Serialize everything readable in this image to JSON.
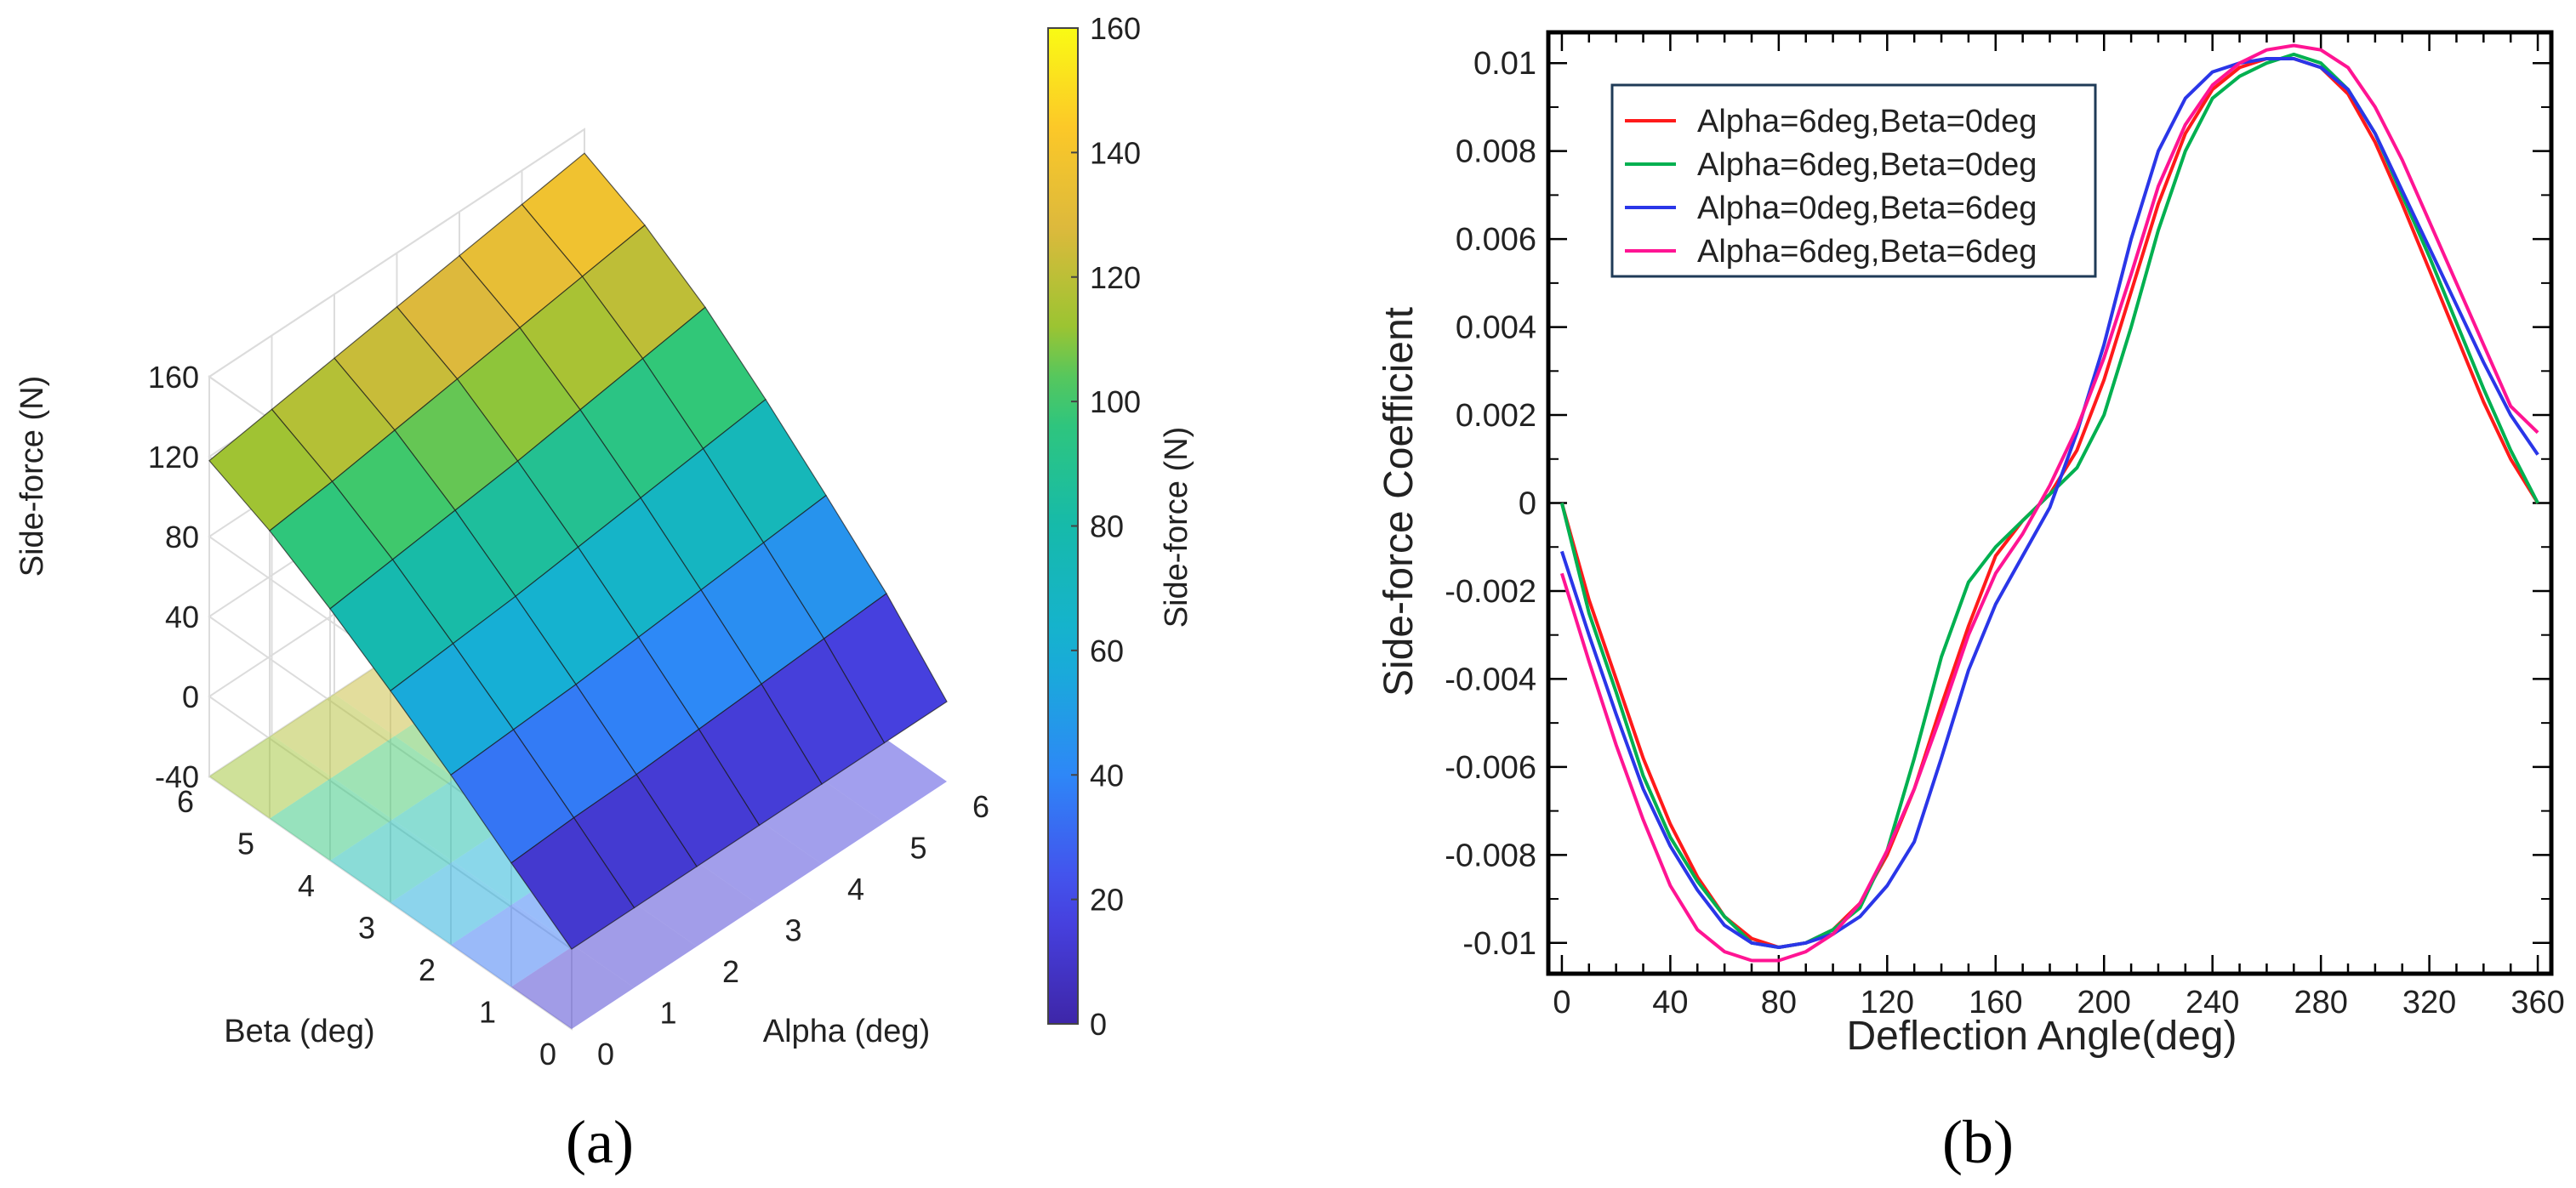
{
  "panel_labels": {
    "a": "(a)",
    "b": "(b)"
  },
  "chart_data": [
    {
      "type": "surface3d",
      "panel": "(a)",
      "zlabel": "Side-force (N)",
      "xlabel": "Alpha (deg)",
      "ylabel": "Beta (deg)",
      "x_ticks": [
        "0",
        "1",
        "2",
        "3",
        "4",
        "5",
        "6"
      ],
      "y_ticks": [
        "0",
        "1",
        "2",
        "3",
        "4",
        "5",
        "6"
      ],
      "z_ticks": [
        "-40",
        "0",
        "40",
        "80",
        "120",
        "160"
      ],
      "zlim": [
        -40,
        160
      ],
      "alpha_values": [
        0,
        1,
        2,
        3,
        4,
        5,
        6
      ],
      "beta_values": [
        0,
        1,
        2,
        3,
        4,
        5,
        6
      ],
      "surface": [
        [
          0,
          0,
          0,
          0,
          0,
          0,
          0
        ],
        [
          22,
          24,
          25,
          27,
          29,
          31,
          33
        ],
        [
          45,
          47,
          49,
          52,
          55,
          58,
          61
        ],
        [
          66,
          69,
          72,
          76,
          80,
          84,
          88
        ],
        [
          86,
          90,
          94,
          98,
          103,
          108,
          113
        ],
        [
          104,
          108,
          113,
          118,
          123,
          128,
          133
        ],
        [
          118,
          123,
          128,
          133,
          138,
          143,
          148
        ]
      ],
      "colorbar": {
        "label": "Side-force (N)",
        "ticks": [
          "0",
          "20",
          "40",
          "60",
          "80",
          "100",
          "120",
          "140",
          "160"
        ],
        "range": [
          0,
          160
        ]
      }
    },
    {
      "type": "line",
      "panel": "(b)",
      "xlabel": "Deflection Angle(deg)",
      "ylabel": "Side-force Coefficient",
      "xlim": [
        -5,
        365
      ],
      "ylim": [
        -0.0107,
        0.0107
      ],
      "x_ticks": [
        "0",
        "40",
        "80",
        "120",
        "160",
        "200",
        "240",
        "280",
        "320",
        "360"
      ],
      "y_ticks": [
        "0.01",
        "0.008",
        "0.006",
        "0.004",
        "0.002",
        "0",
        "-0.002",
        "-0.004",
        "-0.006",
        "-0.008",
        "-0.01"
      ],
      "legend_position": "top-left",
      "x": [
        0,
        10,
        20,
        30,
        40,
        50,
        60,
        70,
        80,
        90,
        100,
        110,
        120,
        130,
        140,
        150,
        160,
        170,
        180,
        190,
        200,
        210,
        220,
        230,
        240,
        250,
        260,
        270,
        280,
        290,
        300,
        310,
        320,
        330,
        340,
        350,
        360
      ],
      "series": [
        {
          "name": "Alpha=6deg,Beta=0deg",
          "color": "#ff1a1a",
          "values": [
            0,
            -0.0022,
            -0.004,
            -0.0058,
            -0.0073,
            -0.0085,
            -0.0094,
            -0.0099,
            -0.0101,
            -0.01,
            -0.0097,
            -0.0091,
            -0.008,
            -0.0065,
            -0.0046,
            -0.0028,
            -0.0012,
            -0.0004,
            0.0002,
            0.0012,
            0.0028,
            0.0048,
            0.0068,
            0.0084,
            0.0094,
            0.0099,
            0.0101,
            0.0101,
            0.0099,
            0.0093,
            0.0082,
            0.0068,
            0.0053,
            0.0038,
            0.0023,
            0.001,
            0
          ]
        },
        {
          "name": "Alpha=6deg,Beta=0deg",
          "color": "#00b050",
          "values": [
            0,
            -0.0025,
            -0.0043,
            -0.0062,
            -0.0076,
            -0.0086,
            -0.0094,
            -0.01,
            -0.0101,
            -0.01,
            -0.0097,
            -0.0092,
            -0.0079,
            -0.0058,
            -0.0035,
            -0.0018,
            -0.001,
            -0.0004,
            0.0002,
            0.0008,
            0.002,
            0.004,
            0.0062,
            0.008,
            0.0092,
            0.0097,
            0.01,
            0.0102,
            0.01,
            0.0094,
            0.0084,
            0.007,
            0.0056,
            0.0041,
            0.0026,
            0.0012,
            0
          ]
        },
        {
          "name": "Alpha=0deg,Beta=6deg",
          "color": "#2a36e8",
          "values": [
            -0.0011,
            -0.003,
            -0.0048,
            -0.0065,
            -0.0078,
            -0.0088,
            -0.0096,
            -0.01,
            -0.0101,
            -0.01,
            -0.0098,
            -0.0094,
            -0.0087,
            -0.0077,
            -0.0058,
            -0.0038,
            -0.0023,
            -0.0012,
            -0.0001,
            0.0016,
            0.0036,
            0.006,
            0.008,
            0.0092,
            0.0098,
            0.01,
            0.0101,
            0.0101,
            0.0099,
            0.0094,
            0.0084,
            0.0071,
            0.0058,
            0.0045,
            0.0032,
            0.002,
            0.0011
          ]
        },
        {
          "name": "Alpha=6deg,Beta=6deg",
          "color": "#ff1493",
          "values": [
            -0.0016,
            -0.0036,
            -0.0055,
            -0.0072,
            -0.0087,
            -0.0097,
            -0.0102,
            -0.0104,
            -0.0104,
            -0.0102,
            -0.0098,
            -0.0091,
            -0.0079,
            -0.0065,
            -0.0048,
            -0.003,
            -0.0016,
            -0.0007,
            0.0004,
            0.0017,
            0.0033,
            0.0052,
            0.0072,
            0.0086,
            0.0095,
            0.01,
            0.0103,
            0.0104,
            0.0103,
            0.0099,
            0.009,
            0.0078,
            0.0064,
            0.005,
            0.0036,
            0.0022,
            0.0016
          ]
        }
      ]
    }
  ]
}
